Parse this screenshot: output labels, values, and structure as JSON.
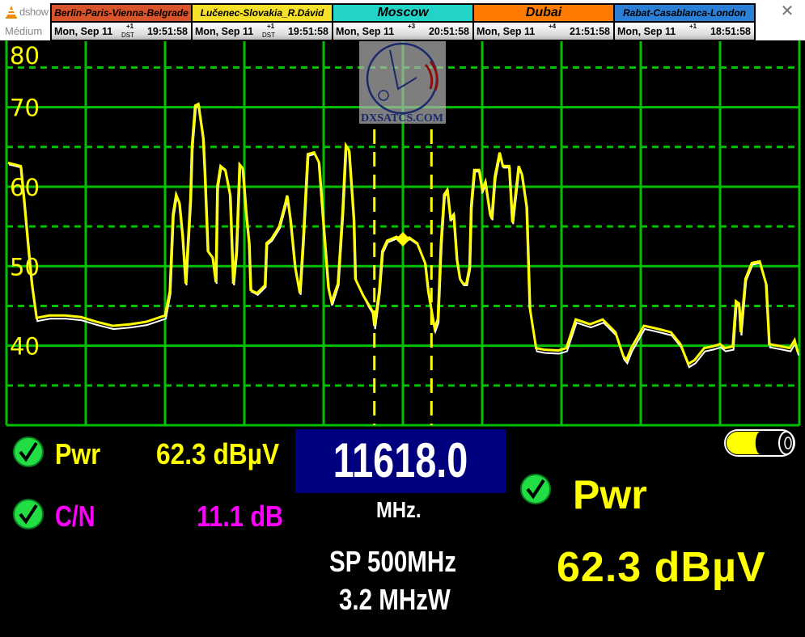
{
  "window": {
    "app_name": "dshow",
    "subtitle": "Médium",
    "close_icon": "close-icon",
    "app_icon": "vlc-cone-icon"
  },
  "clocks": [
    {
      "city": "Berlin-Paris-Vienna-Belgrade",
      "color": "#d9532b",
      "date": "Mon, Sep 11",
      "offset": "+1",
      "dst": "DST",
      "time": "19:51:58"
    },
    {
      "city": "Lučenec-Slovakia_R.Dávid",
      "color": "#f5e12a",
      "date": "Mon, Sep 11",
      "offset": "+1",
      "dst": "DST",
      "time": "19:51:58"
    },
    {
      "city": "Moscow",
      "color": "#22d3c8",
      "date": "Mon, Sep 11",
      "offset": "+3",
      "dst": "",
      "time": "20:51:58"
    },
    {
      "city": "Dubai",
      "color": "#ff7a00",
      "date": "Mon, Sep 11",
      "offset": "+4",
      "dst": "",
      "time": "21:51:58"
    },
    {
      "city": "Rabat-Casablanca-London",
      "color": "#2b7fd6",
      "date": "Mon, Sep 11",
      "offset": "+1",
      "dst": "",
      "time": "18:51:58"
    }
  ],
  "logo": {
    "text": "DXSATCS.COM"
  },
  "chart_data": {
    "type": "line",
    "title": "",
    "xlabel": "",
    "ylabel": "",
    "xlim": [
      11368,
      11868
    ],
    "ylim": [
      30,
      78.4
    ],
    "yticks": [
      40,
      50,
      60,
      70,
      80
    ],
    "x_gridlines_mhz_step": 50,
    "y_gridlines_db_step": 5,
    "grid": true,
    "colors": {
      "trace": "#ffff00",
      "reference_trace": "#ffffff",
      "grid": "#00c000",
      "background": "#000000"
    },
    "markers": {
      "center_mhz": 11618.0,
      "center_level_db": 53.4,
      "left_mhz": 11600,
      "right_mhz": 11636
    },
    "series": [
      {
        "values": [
          [
            11369,
            63.0
          ],
          [
            11377,
            62.6
          ],
          [
            11379,
            58.5
          ],
          [
            11382,
            51.9
          ],
          [
            11384,
            47.8
          ],
          [
            11387,
            43.5
          ],
          [
            11395,
            43.8
          ],
          [
            11405,
            43.8
          ],
          [
            11415,
            43.6
          ],
          [
            11425,
            43.0
          ],
          [
            11435,
            42.5
          ],
          [
            11446,
            42.7
          ],
          [
            11456,
            43.0
          ],
          [
            11468,
            43.8
          ],
          [
            11471,
            46.8
          ],
          [
            11473,
            56.5
          ],
          [
            11475,
            59.0
          ],
          [
            11477,
            58.0
          ],
          [
            11479,
            53.9
          ],
          [
            11481,
            47.8
          ],
          [
            11484,
            58.5
          ],
          [
            11485,
            65.2
          ],
          [
            11487,
            70.2
          ],
          [
            11489,
            70.4
          ],
          [
            11492,
            66.2
          ],
          [
            11493,
            62.1
          ],
          [
            11495,
            51.9
          ],
          [
            11498,
            51.1
          ],
          [
            11500,
            48.0
          ],
          [
            11501,
            60.1
          ],
          [
            11503,
            62.6
          ],
          [
            11506,
            62.1
          ],
          [
            11509,
            59.0
          ],
          [
            11511,
            47.8
          ],
          [
            11513,
            51.9
          ],
          [
            11515,
            62.8
          ],
          [
            11517,
            62.3
          ],
          [
            11519,
            57.0
          ],
          [
            11521,
            52.9
          ],
          [
            11522,
            47.0
          ],
          [
            11526,
            46.6
          ],
          [
            11531,
            47.6
          ],
          [
            11532,
            52.9
          ],
          [
            11535,
            53.4
          ],
          [
            11540,
            55.0
          ],
          [
            11544,
            58.0
          ],
          [
            11545,
            58.9
          ],
          [
            11547,
            56.0
          ],
          [
            11550,
            49.9
          ],
          [
            11553,
            46.6
          ],
          [
            11555,
            52.9
          ],
          [
            11558,
            64.1
          ],
          [
            11562,
            64.3
          ],
          [
            11565,
            63.1
          ],
          [
            11568,
            55.0
          ],
          [
            11571,
            47.3
          ],
          [
            11573,
            45.5
          ],
          [
            11577,
            47.8
          ],
          [
            11580,
            57.0
          ],
          [
            11582,
            65.2
          ],
          [
            11584,
            64.6
          ],
          [
            11587,
            56.0
          ],
          [
            11588,
            48.4
          ],
          [
            11593,
            46.3
          ],
          [
            11596,
            45.3
          ],
          [
            11599,
            44.3
          ],
          [
            11600,
            42.5
          ],
          [
            11603,
            46.8
          ],
          [
            11605,
            51.9
          ],
          [
            11608,
            53.2
          ],
          [
            11614,
            53.7
          ],
          [
            11618,
            53.2
          ],
          [
            11622,
            53.6
          ],
          [
            11627,
            52.9
          ],
          [
            11632,
            50.4
          ],
          [
            11634,
            46.8
          ],
          [
            11638,
            42.2
          ],
          [
            11640,
            43.3
          ],
          [
            11642,
            52.9
          ],
          [
            11644,
            59.0
          ],
          [
            11646,
            59.6
          ],
          [
            11648,
            56.0
          ],
          [
            11650,
            56.5
          ],
          [
            11652,
            50.9
          ],
          [
            11654,
            48.4
          ],
          [
            11656,
            47.8
          ],
          [
            11658,
            47.8
          ],
          [
            11660,
            49.9
          ],
          [
            11661,
            57.5
          ],
          [
            11663,
            62.1
          ],
          [
            11666,
            62.1
          ],
          [
            11668,
            59.6
          ],
          [
            11670,
            60.6
          ],
          [
            11673,
            56.5
          ],
          [
            11674,
            56.0
          ],
          [
            11676,
            61.3
          ],
          [
            11679,
            64.3
          ],
          [
            11681,
            62.6
          ],
          [
            11685,
            62.6
          ],
          [
            11687,
            55.5
          ],
          [
            11691,
            62.6
          ],
          [
            11693,
            61.6
          ],
          [
            11696,
            57.5
          ],
          [
            11698,
            44.8
          ],
          [
            11702,
            39.7
          ],
          [
            11707,
            39.5
          ],
          [
            11716,
            39.4
          ],
          [
            11721,
            39.7
          ],
          [
            11727,
            43.3
          ],
          [
            11736,
            42.7
          ],
          [
            11744,
            43.3
          ],
          [
            11752,
            41.7
          ],
          [
            11757,
            38.7
          ],
          [
            11759,
            38.2
          ],
          [
            11762,
            39.7
          ],
          [
            11770,
            42.5
          ],
          [
            11777,
            42.2
          ],
          [
            11787,
            41.7
          ],
          [
            11793,
            40.2
          ],
          [
            11798,
            37.7
          ],
          [
            11802,
            38.2
          ],
          [
            11808,
            39.7
          ],
          [
            11813,
            39.9
          ],
          [
            11818,
            40.2
          ],
          [
            11821,
            39.7
          ],
          [
            11826,
            39.9
          ],
          [
            11828,
            45.6
          ],
          [
            11830,
            45.3
          ],
          [
            11831,
            41.7
          ],
          [
            11834,
            48.4
          ],
          [
            11838,
            50.4
          ],
          [
            11843,
            50.6
          ],
          [
            11847,
            47.8
          ],
          [
            11849,
            40.2
          ],
          [
            11857,
            39.9
          ],
          [
            11862,
            39.7
          ],
          [
            11865,
            40.7
          ],
          [
            11867,
            39.2
          ]
        ]
      }
    ]
  },
  "readout": {
    "pwr_label": "Pwr",
    "pwr_value": "62.3 dBµV",
    "pwr_color": "#ffff00",
    "cn_label": "C/N",
    "cn_value": "11.1 dB",
    "cn_color": "#ff00ff",
    "frequency": "11618.0",
    "frequency_unit": "MHz.",
    "span": "SP 500MHz",
    "rbw": "3.2 MHzW",
    "big_pwr_label": "Pwr",
    "big_pwr_value": "62.3 dBµV",
    "battery_level": 0.35,
    "battery_icon": "battery-icon",
    "check_icon": "check-circle-icon"
  }
}
